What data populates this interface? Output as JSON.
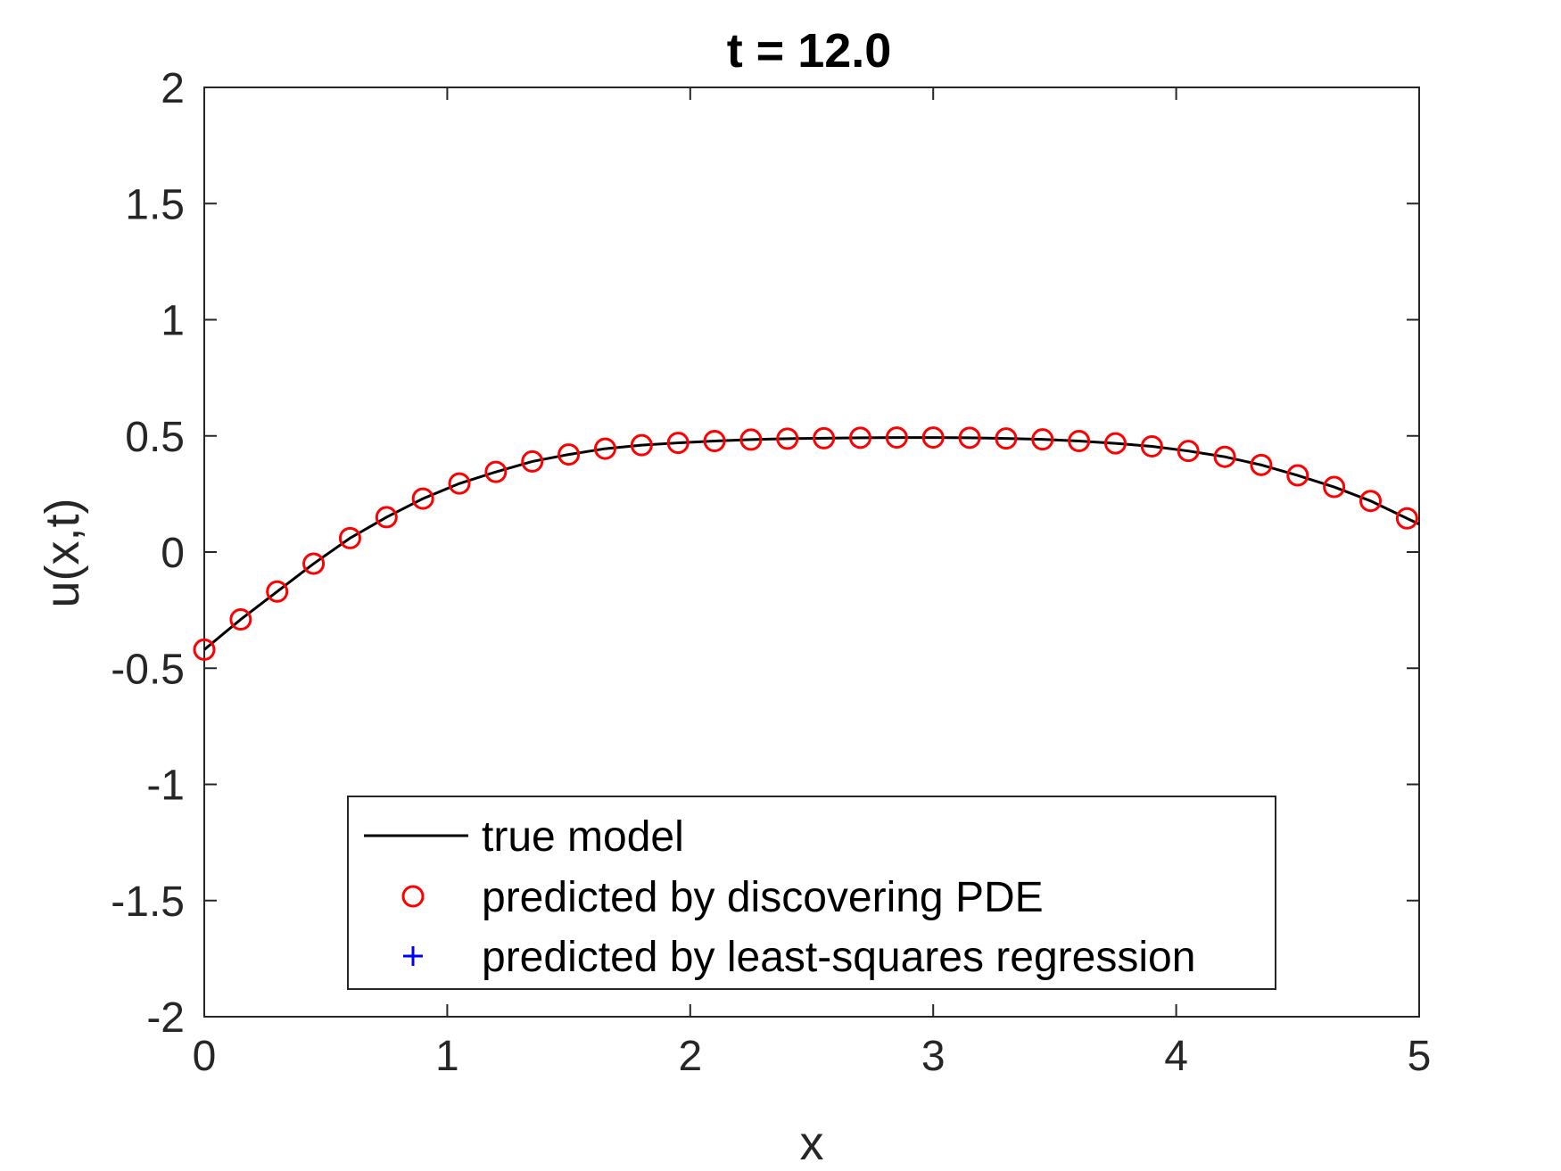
{
  "chart_data": {
    "type": "line",
    "title": "t = 12.0",
    "xlabel": "x",
    "ylabel": "u(x,t)",
    "xlim": [
      0,
      5
    ],
    "ylim": [
      -2,
      2
    ],
    "xticks": [
      "0",
      "1",
      "2",
      "3",
      "4",
      "5"
    ],
    "yticks": [
      "-2",
      "-1.5",
      "-1",
      "-0.5",
      "0",
      "0.5",
      "1",
      "1.5",
      "2"
    ],
    "grid": false,
    "legend_position": "bottom-center",
    "series": [
      {
        "name": "true model",
        "style": "line",
        "color": "#000000",
        "x": [
          0,
          0.15,
          0.3,
          0.45,
          0.6,
          0.75,
          0.9,
          1.05,
          1.2,
          1.35,
          1.5,
          1.65,
          1.8,
          1.95,
          2.1,
          2.25,
          2.4,
          2.55,
          2.7,
          2.85,
          3.0,
          3.15,
          3.3,
          3.45,
          3.6,
          3.75,
          3.9,
          4.05,
          4.2,
          4.35,
          4.5,
          4.65,
          4.8,
          4.95,
          5.0
        ],
        "y": [
          -0.42,
          -0.29,
          -0.17,
          -0.05,
          0.06,
          0.15,
          0.23,
          0.295,
          0.345,
          0.39,
          0.42,
          0.445,
          0.46,
          0.47,
          0.478,
          0.484,
          0.488,
          0.49,
          0.492,
          0.493,
          0.493,
          0.492,
          0.489,
          0.485,
          0.478,
          0.468,
          0.455,
          0.435,
          0.41,
          0.375,
          0.33,
          0.28,
          0.22,
          0.145,
          0.12
        ]
      },
      {
        "name": "predicted by discovering PDE",
        "style": "circle",
        "color": "#ff0000",
        "x": [
          0,
          0.15,
          0.3,
          0.45,
          0.6,
          0.75,
          0.9,
          1.05,
          1.2,
          1.35,
          1.5,
          1.65,
          1.8,
          1.95,
          2.1,
          2.25,
          2.4,
          2.55,
          2.7,
          2.85,
          3.0,
          3.15,
          3.3,
          3.45,
          3.6,
          3.75,
          3.9,
          4.05,
          4.2,
          4.35,
          4.5,
          4.65,
          4.8,
          4.95
        ],
        "y": [
          -0.42,
          -0.29,
          -0.17,
          -0.05,
          0.06,
          0.15,
          0.23,
          0.295,
          0.345,
          0.39,
          0.42,
          0.445,
          0.46,
          0.47,
          0.478,
          0.484,
          0.488,
          0.49,
          0.492,
          0.493,
          0.493,
          0.492,
          0.489,
          0.485,
          0.478,
          0.468,
          0.455,
          0.435,
          0.41,
          0.375,
          0.33,
          0.28,
          0.22,
          0.145
        ]
      },
      {
        "name": "predicted by least-squares regression",
        "style": "plus",
        "color": "#0000ff",
        "x": [],
        "y": []
      }
    ]
  }
}
